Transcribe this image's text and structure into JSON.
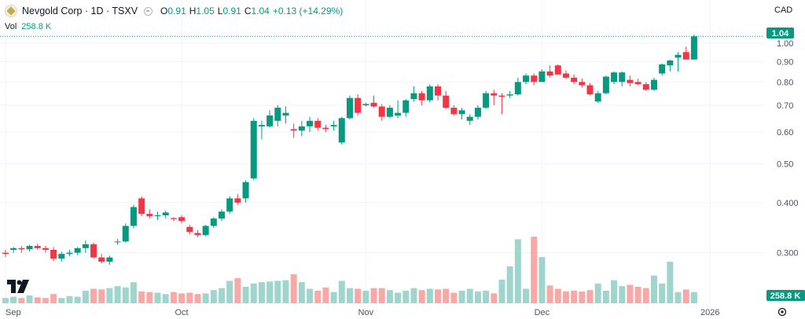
{
  "header": {
    "title": "Nevgold Corp · 1D · TSXV",
    "open_label": "O",
    "open": "0.91",
    "high_label": "H",
    "high": "1.05",
    "low_label": "L",
    "low": "0.91",
    "close_label": "C",
    "close": "1.04",
    "change": "+0.13 (+14.29%)"
  },
  "volume_legend": {
    "label": "Vol",
    "value": "258.8 K"
  },
  "currency": "CAD",
  "price_tag": "1.04",
  "volume_tag": "258.8 K",
  "colors": {
    "up": "#089981",
    "down": "#f23645",
    "vol_up": "#9fd5cd",
    "vol_down": "#f7a9a7",
    "grid": "#f0f3fa",
    "axis_text": "#4c525e",
    "tag_price": "#089981",
    "tag_volume": "#089981"
  },
  "icons": {
    "logo": "nevgold-logo-icon",
    "visibility": "eye-icon",
    "settings": "gear-icon",
    "brand": "tradingview-logo-icon"
  },
  "chart_data": {
    "type": "candlestick",
    "y_axis": {
      "min": 0.27,
      "max": 1.06,
      "scale": "log",
      "ticks": [
        0.3,
        0.4,
        0.5,
        0.6,
        0.7,
        0.8,
        0.9,
        1.0
      ],
      "tick_labels": [
        "0.300",
        "0.400",
        "0.50",
        "0.60",
        "0.70",
        "0.80",
        "0.90",
        "1.00"
      ]
    },
    "x_axis": {
      "labels": [
        "Sep",
        "Oct",
        "Nov",
        "Dec",
        "2026"
      ],
      "label_index": [
        0,
        22,
        45,
        67,
        88
      ]
    },
    "candles": [
      [
        0.3,
        0.305,
        0.293,
        0.298
      ],
      [
        0.305,
        0.31,
        0.3,
        0.308
      ],
      [
        0.308,
        0.312,
        0.3,
        0.306
      ],
      [
        0.306,
        0.314,
        0.302,
        0.312
      ],
      [
        0.312,
        0.316,
        0.305,
        0.308
      ],
      [
        0.308,
        0.312,
        0.3,
        0.305
      ],
      [
        0.305,
        0.31,
        0.286,
        0.29
      ],
      [
        0.29,
        0.302,
        0.285,
        0.298
      ],
      [
        0.298,
        0.305,
        0.294,
        0.3
      ],
      [
        0.3,
        0.31,
        0.296,
        0.308
      ],
      [
        0.308,
        0.322,
        0.3,
        0.315
      ],
      [
        0.315,
        0.318,
        0.29,
        0.292
      ],
      [
        0.292,
        0.298,
        0.282,
        0.285
      ],
      [
        0.285,
        0.295,
        0.28,
        0.292
      ],
      [
        0.32,
        0.325,
        0.314,
        0.32
      ],
      [
        0.32,
        0.355,
        0.318,
        0.35
      ],
      [
        0.35,
        0.395,
        0.345,
        0.39
      ],
      [
        0.41,
        0.415,
        0.37,
        0.375
      ],
      [
        0.375,
        0.385,
        0.365,
        0.37
      ],
      [
        0.37,
        0.38,
        0.362,
        0.372
      ],
      [
        0.372,
        0.382,
        0.365,
        0.378
      ],
      [
        0.366,
        0.368,
        0.36,
        0.364
      ],
      [
        0.368,
        0.372,
        0.355,
        0.36
      ],
      [
        0.348,
        0.352,
        0.333,
        0.338
      ],
      [
        0.336,
        0.342,
        0.328,
        0.332
      ],
      [
        0.332,
        0.352,
        0.33,
        0.35
      ],
      [
        0.35,
        0.368,
        0.346,
        0.365
      ],
      [
        0.365,
        0.385,
        0.36,
        0.38
      ],
      [
        0.38,
        0.415,
        0.375,
        0.41
      ],
      [
        0.41,
        0.42,
        0.395,
        0.4
      ],
      [
        0.41,
        0.455,
        0.4,
        0.45
      ],
      [
        0.46,
        0.65,
        0.455,
        0.64
      ],
      [
        0.62,
        0.64,
        0.575,
        0.625
      ],
      [
        0.62,
        0.68,
        0.615,
        0.66
      ],
      [
        0.64,
        0.7,
        0.62,
        0.69
      ],
      [
        0.66,
        0.695,
        0.63,
        0.67
      ],
      [
        0.61,
        0.63,
        0.58,
        0.605
      ],
      [
        0.605,
        0.64,
        0.585,
        0.62
      ],
      [
        0.62,
        0.655,
        0.6,
        0.64
      ],
      [
        0.64,
        0.65,
        0.605,
        0.615
      ],
      [
        0.615,
        0.625,
        0.6,
        0.61
      ],
      [
        0.62,
        0.64,
        0.605,
        0.625
      ],
      [
        0.565,
        0.655,
        0.558,
        0.65
      ],
      [
        0.65,
        0.74,
        0.645,
        0.73
      ],
      [
        0.73,
        0.745,
        0.66,
        0.67
      ],
      [
        0.7,
        0.71,
        0.695,
        0.705
      ],
      [
        0.71,
        0.74,
        0.69,
        0.695
      ],
      [
        0.695,
        0.705,
        0.64,
        0.655
      ],
      [
        0.655,
        0.7,
        0.65,
        0.69
      ],
      [
        0.66,
        0.72,
        0.65,
        0.67
      ],
      [
        0.67,
        0.725,
        0.655,
        0.72
      ],
      [
        0.725,
        0.78,
        0.715,
        0.75
      ],
      [
        0.75,
        0.76,
        0.7,
        0.72
      ],
      [
        0.72,
        0.79,
        0.71,
        0.78
      ],
      [
        0.78,
        0.79,
        0.72,
        0.74
      ],
      [
        0.74,
        0.76,
        0.685,
        0.69
      ],
      [
        0.69,
        0.7,
        0.66,
        0.665
      ],
      [
        0.665,
        0.69,
        0.645,
        0.68
      ],
      [
        0.64,
        0.665,
        0.625,
        0.655
      ],
      [
        0.655,
        0.7,
        0.645,
        0.69
      ],
      [
        0.69,
        0.76,
        0.685,
        0.75
      ],
      [
        0.75,
        0.765,
        0.7,
        0.74
      ],
      [
        0.74,
        0.75,
        0.665,
        0.735
      ],
      [
        0.74,
        0.76,
        0.73,
        0.745
      ],
      [
        0.745,
        0.82,
        0.74,
        0.8
      ],
      [
        0.8,
        0.84,
        0.79,
        0.83
      ],
      [
        0.83,
        0.84,
        0.785,
        0.8
      ],
      [
        0.8,
        0.86,
        0.8,
        0.85
      ],
      [
        0.85,
        0.88,
        0.82,
        0.83
      ],
      [
        0.88,
        0.885,
        0.84,
        0.835
      ],
      [
        0.84,
        0.855,
        0.815,
        0.82
      ],
      [
        0.82,
        0.835,
        0.79,
        0.8
      ],
      [
        0.8,
        0.815,
        0.775,
        0.785
      ],
      [
        0.785,
        0.795,
        0.74,
        0.745
      ],
      [
        0.715,
        0.76,
        0.71,
        0.75
      ],
      [
        0.75,
        0.83,
        0.745,
        0.825
      ],
      [
        0.8,
        0.85,
        0.79,
        0.845
      ],
      [
        0.8,
        0.85,
        0.78,
        0.845
      ],
      [
        0.81,
        0.83,
        0.78,
        0.795
      ],
      [
        0.8,
        0.815,
        0.785,
        0.79
      ],
      [
        0.79,
        0.8,
        0.76,
        0.765
      ],
      [
        0.765,
        0.82,
        0.76,
        0.81
      ],
      [
        0.84,
        0.89,
        0.83,
        0.885
      ],
      [
        0.88,
        0.91,
        0.85,
        0.905
      ],
      [
        0.92,
        0.95,
        0.85,
        0.935
      ],
      [
        0.95,
        0.98,
        0.91,
        0.91
      ],
      [
        0.91,
        1.05,
        0.91,
        1.04
      ]
    ],
    "volume": {
      "max": 750,
      "values": [
        40,
        50,
        40,
        60,
        45,
        40,
        70,
        40,
        55,
        50,
        95,
        110,
        105,
        115,
        130,
        120,
        160,
        90,
        85,
        80,
        70,
        85,
        75,
        80,
        70,
        75,
        100,
        115,
        170,
        190,
        125,
        150,
        160,
        165,
        170,
        175,
        220,
        160,
        110,
        95,
        120,
        85,
        170,
        115,
        110,
        95,
        115,
        115,
        100,
        80,
        95,
        115,
        100,
        110,
        105,
        110,
        80,
        95,
        110,
        90,
        95,
        75,
        180,
        280,
        485,
        110,
        505,
        350,
        135,
        110,
        90,
        95,
        90,
        100,
        150,
        95,
        175,
        130,
        140,
        125,
        115,
        210,
        150,
        315,
        85,
        105,
        85
      ],
      "up": [
        1,
        1,
        0,
        1,
        0,
        0,
        0,
        1,
        1,
        1,
        1,
        0,
        0,
        1,
        1,
        1,
        1,
        0,
        0,
        1,
        1,
        0,
        0,
        0,
        0,
        1,
        1,
        1,
        1,
        0,
        1,
        1,
        1,
        1,
        1,
        1,
        0,
        1,
        1,
        0,
        0,
        1,
        1,
        1,
        0,
        1,
        0,
        0,
        1,
        1,
        1,
        1,
        0,
        1,
        0,
        0,
        0,
        1,
        1,
        1,
        1,
        0,
        1,
        1,
        1,
        1,
        0,
        1,
        0,
        0,
        0,
        0,
        0,
        0,
        1,
        1,
        1,
        1,
        0,
        0,
        0,
        1,
        1,
        1,
        1,
        0,
        1
      ]
    }
  }
}
